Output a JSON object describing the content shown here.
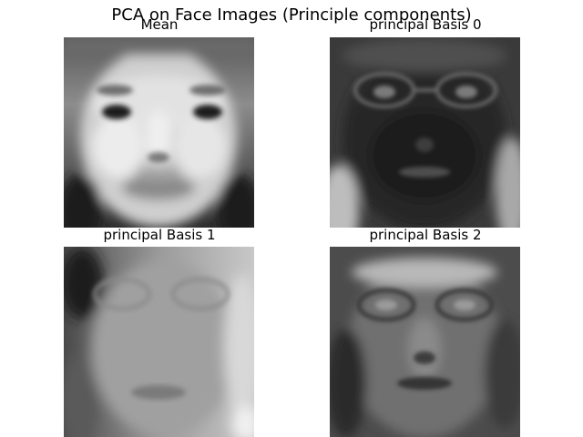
{
  "figure": {
    "suptitle": "PCA on Face Images (Principle components)"
  },
  "panels": [
    {
      "title": "Mean"
    },
    {
      "title": "principal Basis 0"
    },
    {
      "title": "principal Basis 1"
    },
    {
      "title": "principal Basis 2"
    }
  ],
  "colors": {
    "background": "#ffffff",
    "text": "#000000"
  }
}
